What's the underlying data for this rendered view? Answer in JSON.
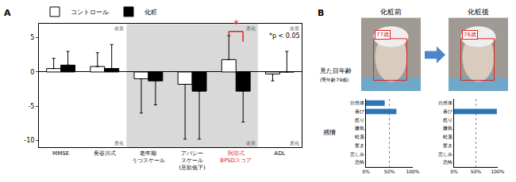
{
  "panel_labels": [
    "A",
    "B"
  ],
  "chart_data": [
    {
      "type": "bar",
      "categories": [
        "MMSE",
        "長谷川式",
        "老年期\nうつスケール",
        "アパシー\nスケール\n(意欲低下)",
        "阿部式\nBPSDスコア",
        "ADL"
      ],
      "series": [
        {
          "name": "コントロール",
          "color": "#ffffff",
          "values": [
            0.5,
            0.8,
            -1.0,
            -1.8,
            1.8,
            -0.3
          ],
          "errors": [
            1.5,
            2.0,
            5.0,
            8.0,
            3.5,
            1.0
          ]
        },
        {
          "name": "化粧",
          "color": "#000000",
          "values": [
            1.0,
            0.5,
            -1.3,
            -2.8,
            -2.8,
            0.0
          ],
          "errors": [
            2.0,
            3.5,
            3.5,
            7.0,
            4.5,
            3.0
          ]
        }
      ],
      "ylim": [
        -11,
        7
      ],
      "yticks": [
        5,
        0,
        -5,
        -10
      ],
      "grid": false,
      "legend": "top left",
      "groups": [
        {
          "categories": [
            "MMSE",
            "長谷川式"
          ],
          "shaded": false,
          "top": "改善",
          "bottom": "悪化"
        },
        {
          "categories": [
            "老年期\nうつスケール",
            "アパシー\nスケール\n(意欲低下)",
            "阿部式\nBPSDスコア"
          ],
          "shaded": true,
          "top": "悪化",
          "bottom": "改善"
        },
        {
          "categories": [
            "ADL"
          ],
          "shaded": false,
          "top": "改善",
          "bottom": "悪化"
        }
      ],
      "annotations": [
        {
          "text": "*",
          "category": "阿部式\nBPSDスコア",
          "color": "#e02020"
        },
        {
          "text": "*p < 0.05"
        }
      ]
    },
    {
      "type": "bar",
      "orientation": "horizontal",
      "categories": [
        "自然体",
        "喜び",
        "怒り",
        "嫌気",
        "軽蔑",
        "驚き",
        "悲しみ",
        "恐怖"
      ],
      "values": [
        40,
        65,
        0,
        0,
        0,
        0,
        0,
        0
      ],
      "color": "#2e75b6",
      "xlim": [
        0,
        100
      ],
      "xticks": [
        {
          "value": 0,
          "label": "0%"
        },
        {
          "value": 50,
          "label": "50%"
        },
        {
          "value": 100,
          "label": "100%"
        }
      ],
      "grid": true
    },
    {
      "type": "bar",
      "orientation": "horizontal",
      "categories": [
        "自然体",
        "喜び",
        "怒り",
        "嫌気",
        "軽蔑",
        "驚き",
        "悲しみ",
        "恐怖"
      ],
      "values": [
        0,
        98,
        0,
        0,
        0,
        0,
        0,
        0
      ],
      "color": "#2e75b6",
      "xlim": [
        0,
        100
      ],
      "xticks": [
        {
          "value": 0,
          "label": "0%"
        },
        {
          "value": 50,
          "label": "50%"
        },
        {
          "value": 100,
          "label": "100%"
        }
      ],
      "grid": true
    }
  ],
  "photos": {
    "row_label": "見た目年齢",
    "row_sublabel": "(実年齢79歳)",
    "emotion_label": "感情",
    "items": [
      {
        "title": "化粧前",
        "age": "77歳"
      },
      {
        "title": "化粧後",
        "age": "76歳"
      }
    ]
  }
}
